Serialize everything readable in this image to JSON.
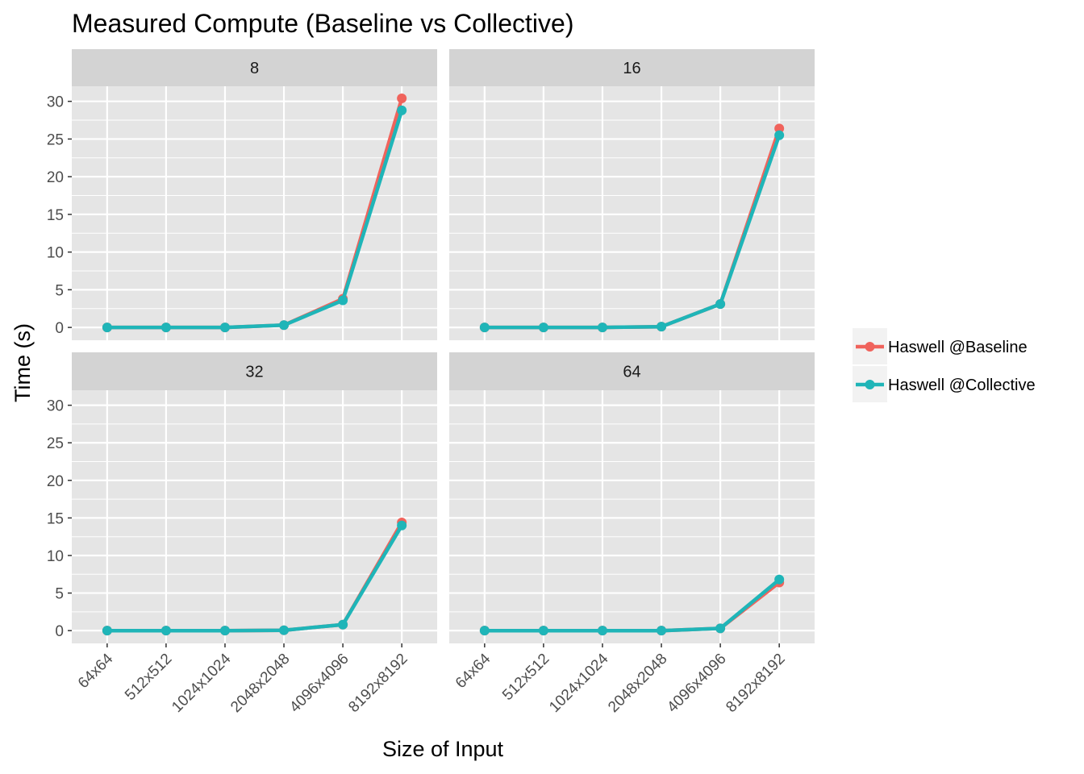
{
  "chart_data": {
    "type": "line",
    "title": "Measured Compute (Baseline vs Collective)",
    "xlabel": "Size of Input",
    "ylabel": "Time (s)",
    "categories": [
      "64x64",
      "512x512",
      "1024x1024",
      "2048x2048",
      "4096x4096",
      "8192x8192"
    ],
    "y_ticks": [
      0,
      5,
      10,
      15,
      20,
      25,
      30
    ],
    "ylim": [
      -1.7,
      32
    ],
    "grid": true,
    "legend_position": "right",
    "colors": {
      "panel_bg": "#e5e5e5",
      "strip_bg": "#d3d3d3",
      "grid": "#ffffff",
      "tick": "#333333"
    },
    "legend": [
      {
        "name": "Haswell @Baseline",
        "color": "#f0635c"
      },
      {
        "name": "Haswell @Collective",
        "color": "#1fb5b8"
      }
    ],
    "panels": [
      {
        "label": "8",
        "series": [
          {
            "name": "Haswell @Baseline",
            "values": [
              0.0,
              0.0,
              0.0,
              0.3,
              3.8,
              30.4
            ]
          },
          {
            "name": "Haswell @Collective",
            "values": [
              0.0,
              0.0,
              0.0,
              0.3,
              3.6,
              28.8
            ]
          }
        ]
      },
      {
        "label": "16",
        "series": [
          {
            "name": "Haswell @Baseline",
            "values": [
              0.0,
              0.0,
              0.0,
              0.1,
              3.1,
              26.4
            ]
          },
          {
            "name": "Haswell @Collective",
            "values": [
              0.0,
              0.0,
              0.0,
              0.1,
              3.1,
              25.5
            ]
          }
        ]
      },
      {
        "label": "32",
        "series": [
          {
            "name": "Haswell @Baseline",
            "values": [
              0.0,
              0.0,
              0.0,
              0.05,
              0.8,
              14.4
            ]
          },
          {
            "name": "Haswell @Collective",
            "values": [
              0.0,
              0.0,
              0.0,
              0.05,
              0.8,
              14.0
            ]
          }
        ]
      },
      {
        "label": "64",
        "series": [
          {
            "name": "Haswell @Baseline",
            "values": [
              0.0,
              0.0,
              0.0,
              0.0,
              0.3,
              6.4
            ]
          },
          {
            "name": "Haswell @Collective",
            "values": [
              0.0,
              0.0,
              0.0,
              0.0,
              0.3,
              6.8
            ]
          }
        ]
      }
    ]
  }
}
